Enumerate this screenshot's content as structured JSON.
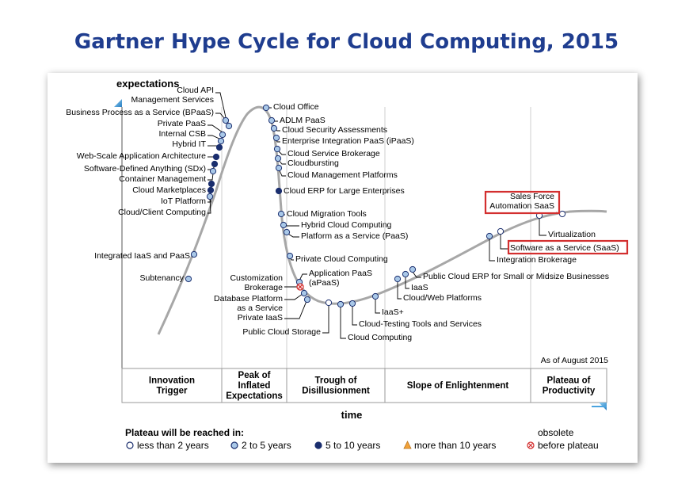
{
  "title": "Gartner Hype Cycle for Cloud Computing, 2015",
  "colors": {
    "title": "#1f3d8f",
    "curve": "#a7a7a7",
    "ring_fill": "#a9c8e8",
    "dark_fill": "#1a2e6e",
    "highlight_box": "#d32f2f",
    "arrow": "#4aa3df"
  },
  "axis": {
    "y_label": "expectations",
    "x_label": "time",
    "as_of": "As of August 2015"
  },
  "phases": [
    {
      "lines": [
        "Innovation",
        "Trigger"
      ]
    },
    {
      "lines": [
        "Peak of",
        "Inflated",
        "Expectations"
      ]
    },
    {
      "lines": [
        "Trough of",
        "Disillusionment"
      ]
    },
    {
      "lines": [
        "Slope of Enlightenment"
      ]
    },
    {
      "lines": [
        "Plateau of",
        "Productivity"
      ]
    }
  ],
  "technologies": [
    {
      "name": "Cloud API Management Services",
      "lines": [
        "Cloud API",
        "Management Services"
      ],
      "years": "2 to 5 years"
    },
    {
      "name": "Business Process as a Service (BPaaS)",
      "lines": [
        "Business Process as a Service (BPaaS)"
      ],
      "years": "2 to 5 years"
    },
    {
      "name": "Private PaaS",
      "lines": [
        "Private PaaS"
      ],
      "years": "2 to 5 years"
    },
    {
      "name": "Internal CSB",
      "lines": [
        "Internal CSB"
      ],
      "years": "2 to 5 years"
    },
    {
      "name": "Hybrid IT",
      "lines": [
        "Hybrid IT"
      ],
      "years": "5 to 10 years"
    },
    {
      "name": "Web-Scale Application Architecture",
      "lines": [
        "Web-Scale Application Architecture"
      ],
      "years": "5 to 10 years"
    },
    {
      "name": "Software-Defined Anything (SDx)",
      "lines": [
        "Software-Defined Anything (SDx)"
      ],
      "years": "5 to 10 years"
    },
    {
      "name": "Container Management",
      "lines": [
        "Container Management"
      ],
      "years": "2 to 5 years"
    },
    {
      "name": "Cloud Marketplaces",
      "lines": [
        "Cloud Marketplaces"
      ],
      "years": "5 to 10 years"
    },
    {
      "name": "IoT Platform",
      "lines": [
        "IoT Platform"
      ],
      "years": "5 to 10 years"
    },
    {
      "name": "Cloud/Client Computing",
      "lines": [
        "Cloud/Client Computing"
      ],
      "years": "2 to 5 years"
    },
    {
      "name": "Integrated IaaS and PaaS",
      "lines": [
        "Integrated IaaS and PaaS"
      ],
      "years": "2 to 5 years"
    },
    {
      "name": "Subtenancy",
      "lines": [
        "Subtenancy"
      ],
      "years": "2 to 5 years"
    },
    {
      "name": "Cloud Office",
      "lines": [
        "Cloud Office"
      ],
      "years": "2 to 5 years"
    },
    {
      "name": "ADLM PaaS",
      "lines": [
        "ADLM PaaS"
      ],
      "years": "2 to 5 years"
    },
    {
      "name": "Cloud Security Assessments",
      "lines": [
        "Cloud Security Assessments"
      ],
      "years": "2 to 5 years"
    },
    {
      "name": "Enterprise Integration PaaS (iPaaS)",
      "lines": [
        "Enterprise Integration PaaS (iPaaS)"
      ],
      "years": "2 to 5 years"
    },
    {
      "name": "Cloud Service Brokerage",
      "lines": [
        "Cloud Service Brokerage"
      ],
      "years": "2 to 5 years"
    },
    {
      "name": "Cloudbursting",
      "lines": [
        "Cloudbursting"
      ],
      "years": "2 to 5 years"
    },
    {
      "name": "Cloud Management Platforms",
      "lines": [
        "Cloud Management Platforms"
      ],
      "years": "2 to 5 years"
    },
    {
      "name": "Cloud ERP for Large Enterprises",
      "lines": [
        "Cloud ERP for Large Enterprises"
      ],
      "years": "5 to 10 years"
    },
    {
      "name": "Cloud Migration Tools",
      "lines": [
        "Cloud Migration Tools"
      ],
      "years": "2 to 5 years"
    },
    {
      "name": "Hybrid Cloud Computing",
      "lines": [
        "Hybrid Cloud Computing"
      ],
      "years": "2 to 5 years"
    },
    {
      "name": "Platform as a Service (PaaS)",
      "lines": [
        "Platform as a Service (PaaS)"
      ],
      "years": "2 to 5 years"
    },
    {
      "name": "Private Cloud Computing",
      "lines": [
        "Private Cloud Computing"
      ],
      "years": "2 to 5 years"
    },
    {
      "name": "Application PaaS (aPaaS)",
      "lines": [
        "Application PaaS",
        "(aPaaS)"
      ],
      "years": "2 to 5 years"
    },
    {
      "name": "Customization Brokerage",
      "lines": [
        "Customization",
        "Brokerage"
      ],
      "years": "obsolete before plateau"
    },
    {
      "name": "Database Platform as a Service",
      "lines": [
        "Database Platform",
        "as a Service"
      ],
      "years": "2 to 5 years"
    },
    {
      "name": "Private IaaS",
      "lines": [
        "Private IaaS"
      ],
      "years": "2 to 5 years"
    },
    {
      "name": "Public Cloud Storage",
      "lines": [
        "Public Cloud Storage"
      ],
      "years": "less than 2 years"
    },
    {
      "name": "Cloud Computing",
      "lines": [
        "Cloud Computing"
      ],
      "years": "2 to 5 years"
    },
    {
      "name": "Cloud-Testing Tools and Services",
      "lines": [
        "Cloud-Testing Tools and Services"
      ],
      "years": "2 to 5 years"
    },
    {
      "name": "IaaS+",
      "lines": [
        "IaaS+"
      ],
      "years": "2 to 5 years"
    },
    {
      "name": "Cloud/Web Platforms",
      "lines": [
        "Cloud/Web Platforms"
      ],
      "years": "2 to 5 years"
    },
    {
      "name": "IaaS",
      "lines": [
        "IaaS"
      ],
      "years": "2 to 5 years"
    },
    {
      "name": "Public Cloud ERP for Small or Midsize Businesses",
      "lines": [
        "Public Cloud ERP for Small or Midsize Businesses"
      ],
      "years": "2 to 5 years"
    },
    {
      "name": "Integration Brokerage",
      "lines": [
        "Integration Brokerage"
      ],
      "years": "2 to 5 years"
    },
    {
      "name": "Software as a Service (SaaS)",
      "lines": [
        "Software as a Service (SaaS)"
      ],
      "years": "less than 2 years"
    },
    {
      "name": "Virtualization",
      "lines": [
        "Virtualization"
      ],
      "years": "less than 2 years"
    },
    {
      "name": "Sales Force Automation SaaS",
      "lines": [
        "Sales Force",
        "Automation SaaS"
      ],
      "years": "less than 2 years"
    }
  ],
  "legend": {
    "title": "Plateau will be reached in:",
    "items": [
      {
        "symbol": "circle-white",
        "label": "less than 2 years"
      },
      {
        "symbol": "circle-light",
        "label": "2 to 5 years"
      },
      {
        "symbol": "circle-dark",
        "label": "5 to 10 years"
      },
      {
        "symbol": "triangle",
        "label": "more than 10 years"
      },
      {
        "symbol": "x-circle",
        "label_top": "obsolete",
        "label": "before plateau"
      }
    ]
  }
}
